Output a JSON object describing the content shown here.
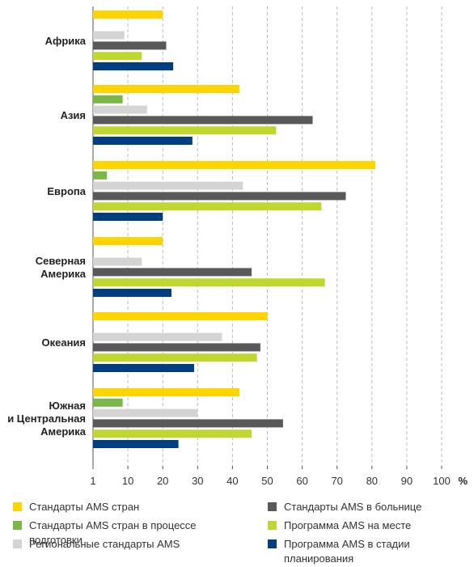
{
  "chart_data": {
    "type": "bar",
    "orientation": "horizontal",
    "categories": [
      "Африка",
      "Азия",
      "Европа",
      "Северная Америка",
      "Океания",
      "Южная и Центральная Америка"
    ],
    "category_lines": [
      [
        "Африка"
      ],
      [
        "Азия"
      ],
      [
        "Европа"
      ],
      [
        "Северная",
        "Америка"
      ],
      [
        "Океания"
      ],
      [
        "Южная",
        "и Центральная",
        "Америка"
      ]
    ],
    "series": [
      {
        "name": "Стандарты AMS стран",
        "color": "#FFD500",
        "values": [
          20,
          42,
          81,
          20,
          50,
          42
        ]
      },
      {
        "name": "Стандарты AMS стран в процессе подготовки",
        "color": "#7AB648",
        "values": [
          0,
          8.5,
          4,
          0,
          0,
          8.5
        ]
      },
      {
        "name": "Региональные стандарты AMS",
        "color": "#D4D4D4",
        "values": [
          9,
          15.5,
          43,
          14,
          37,
          30
        ]
      },
      {
        "name": "Стандарты AMS в больнице",
        "color": "#595959",
        "values": [
          21,
          63,
          72.5,
          45.5,
          48,
          54.5
        ]
      },
      {
        "name": "Программа AMS на месте",
        "color": "#BFD730",
        "values": [
          14,
          52.5,
          65.5,
          66.5,
          47,
          45.5
        ]
      },
      {
        "name": "Программа AMS в стадии планирования",
        "color": "#003F7F",
        "values": [
          23,
          28.5,
          20,
          22.5,
          29,
          24.5
        ]
      }
    ],
    "x_ticks": [
      "1",
      "10",
      "20",
      "30",
      "40",
      "50",
      "60",
      "70",
      "80",
      "90",
      "100"
    ],
    "x_unit": "%",
    "xlim": [
      0,
      100
    ],
    "grid": "vertical dashed",
    "legend_position": "bottom",
    "legend_rows": [
      [
        [
          "Стандарты AMS стран"
        ],
        [
          "Стандарты AMS в больнице"
        ]
      ],
      [
        [
          "Стандарты AMS стран в процессе",
          "подготовки"
        ],
        [
          "Программа AMS на месте"
        ]
      ],
      [
        [
          "Региональные стандарты AMS"
        ],
        [
          "Программа AMS в стадии",
          "планирования"
        ]
      ]
    ]
  }
}
